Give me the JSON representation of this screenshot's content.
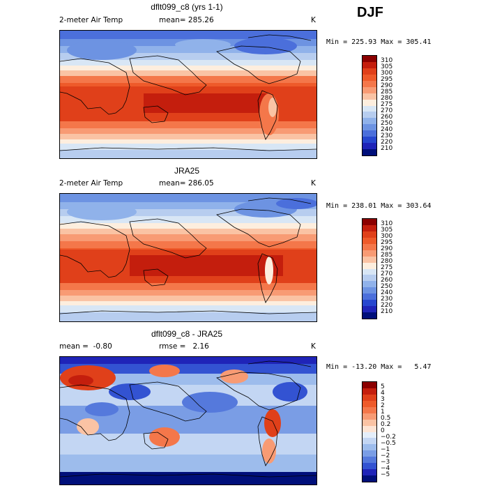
{
  "season": "DJF",
  "panels": [
    {
      "title": "dflt099_c8 (yrs 1-1)",
      "left_label": "2-meter Air Temp",
      "center_label": "mean= 285.26",
      "units": "K",
      "minmax": "Min = 225.93 Max = 305.41",
      "colorbar": {
        "labels": [
          "310",
          "305",
          "300",
          "295",
          "290",
          "285",
          "280",
          "275",
          "270",
          "260",
          "250",
          "240",
          "230",
          "220",
          "210"
        ],
        "colors": [
          "#8b0000",
          "#c41e0d",
          "#e0401a",
          "#ee5a2a",
          "#f4774a",
          "#f89b74",
          "#fac3a4",
          "#fdeede",
          "#d8e6f5",
          "#b7cdef",
          "#90b2ea",
          "#6d93e2",
          "#4b6fdb",
          "#2747cf",
          "#1f24b8",
          "#000f7a"
        ]
      }
    },
    {
      "title": "JRA25",
      "left_label": "2-meter Air Temp",
      "center_label": "mean= 286.05",
      "units": "K",
      "minmax": "Min = 238.01 Max = 303.64",
      "colorbar": {
        "labels": [
          "310",
          "305",
          "300",
          "295",
          "290",
          "285",
          "280",
          "275",
          "270",
          "260",
          "250",
          "240",
          "230",
          "220",
          "210"
        ],
        "colors": [
          "#8b0000",
          "#c41e0d",
          "#e0401a",
          "#ee5a2a",
          "#f4774a",
          "#f89b74",
          "#fac3a4",
          "#fdeede",
          "#d8e6f5",
          "#b7cdef",
          "#90b2ea",
          "#6d93e2",
          "#4b6fdb",
          "#2747cf",
          "#1f24b8",
          "#000f7a"
        ]
      }
    },
    {
      "title": "dflt099_c8 - JRA25",
      "left_label": "mean =  -0.80",
      "center_label": "rmse =   2.16",
      "units": "K",
      "minmax": "Min = -13.20 Max =   5.47",
      "colorbar": {
        "labels": [
          "5",
          "4",
          "3",
          "2",
          "1",
          "0.5",
          "0.2",
          "0",
          "−0.2",
          "−0.5",
          "−1",
          "−2",
          "−3",
          "−4",
          "−5"
        ],
        "colors": [
          "#8b0000",
          "#c41e0d",
          "#e0401a",
          "#ee5a2a",
          "#f4774a",
          "#f89b74",
          "#fac3a4",
          "#fde4d4",
          "#e4eefa",
          "#c3d6f3",
          "#9dbcec",
          "#7a9de5",
          "#5579dc",
          "#3353d2",
          "#1f24b8",
          "#000f7a"
        ]
      }
    }
  ]
}
